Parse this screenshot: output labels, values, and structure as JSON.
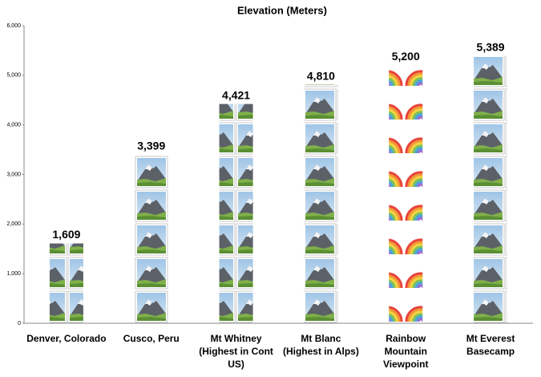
{
  "chart_data": {
    "type": "pictograph",
    "title": "Elevation (Meters)",
    "categories": [
      "Denver, Colorado",
      "Cusco, Peru",
      "Mt Whitney (Highest in Cont US)",
      "Mt Blanc (Highest in Alps)",
      "Rainbow Mountain Viewpoint",
      "Mt Everest Basecamp"
    ],
    "values": [
      1609,
      3399,
      4421,
      4810,
      5200,
      5389
    ],
    "value_labels": [
      "1,609",
      "3,399",
      "4,421",
      "4,810",
      "5,200",
      "5,389"
    ],
    "icons": [
      "mountain",
      "mountain",
      "mountain",
      "mountain",
      "rainbow",
      "mountain"
    ],
    "ylim": [
      0,
      6000
    ],
    "yticks": [
      0,
      {
        "value": 1000,
        "label": "1,000"
      },
      {
        "value": 2000,
        "label": "2,000"
      },
      {
        "value": 3000,
        "label": "3,000"
      },
      {
        "value": 4000,
        "label": "4,000"
      },
      {
        "value": 5000,
        "label": "5,000"
      },
      {
        "value": 6000,
        "label": "6,000"
      }
    ],
    "grid": false
  }
}
